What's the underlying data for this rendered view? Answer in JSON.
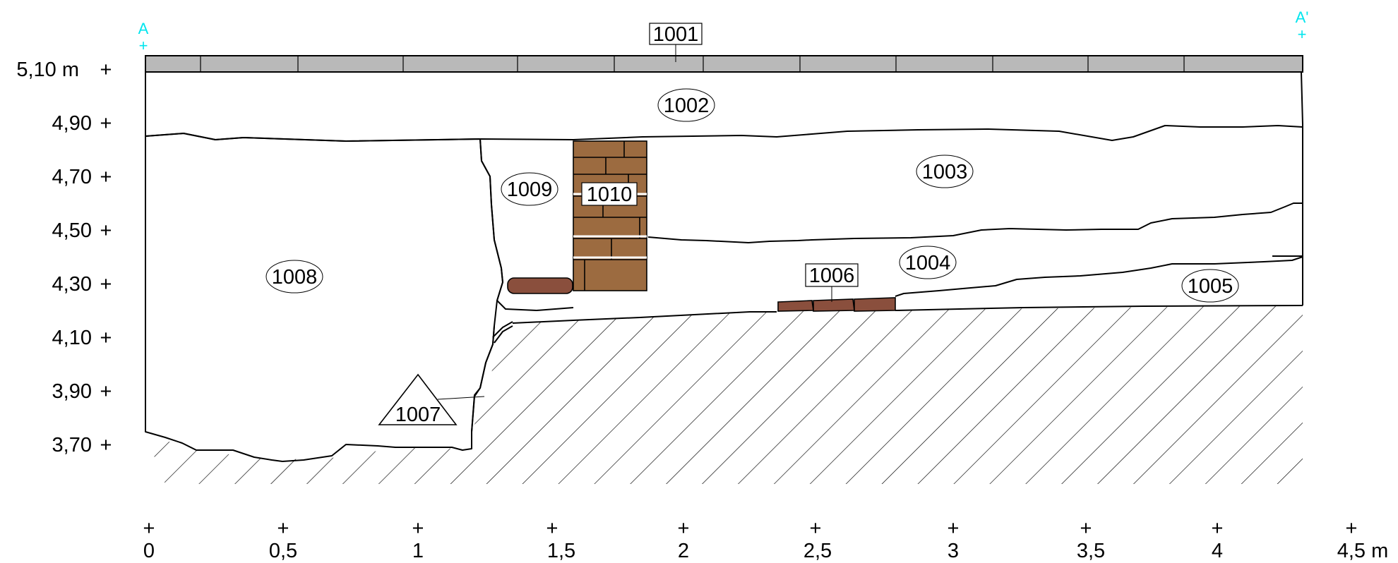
{
  "section": {
    "start_point": "A",
    "end_point": "A'",
    "elevation_labels": [
      "5,10 m",
      "4,90",
      "4,70",
      "4,50",
      "4,30",
      "4,10",
      "3,90",
      "3,70"
    ],
    "distance_labels": [
      "0",
      "0,5",
      "1",
      "1,5",
      "2",
      "2,5",
      "3",
      "3,5",
      "4",
      "4,5 m"
    ],
    "contexts": {
      "c1001": "1001",
      "c1002": "1002",
      "c1003": "1003",
      "c1004": "1004",
      "c1005": "1005",
      "c1006": "1006",
      "c1007": "1007",
      "c1008": "1008",
      "c1009": "1009",
      "c1010": "1010"
    },
    "colors": {
      "topsoil": "#b9b9b9",
      "masonry": "#9c6b40",
      "stone": "#8a4f3d",
      "outline": "#000000",
      "survey_point": "#00e5ee"
    }
  }
}
